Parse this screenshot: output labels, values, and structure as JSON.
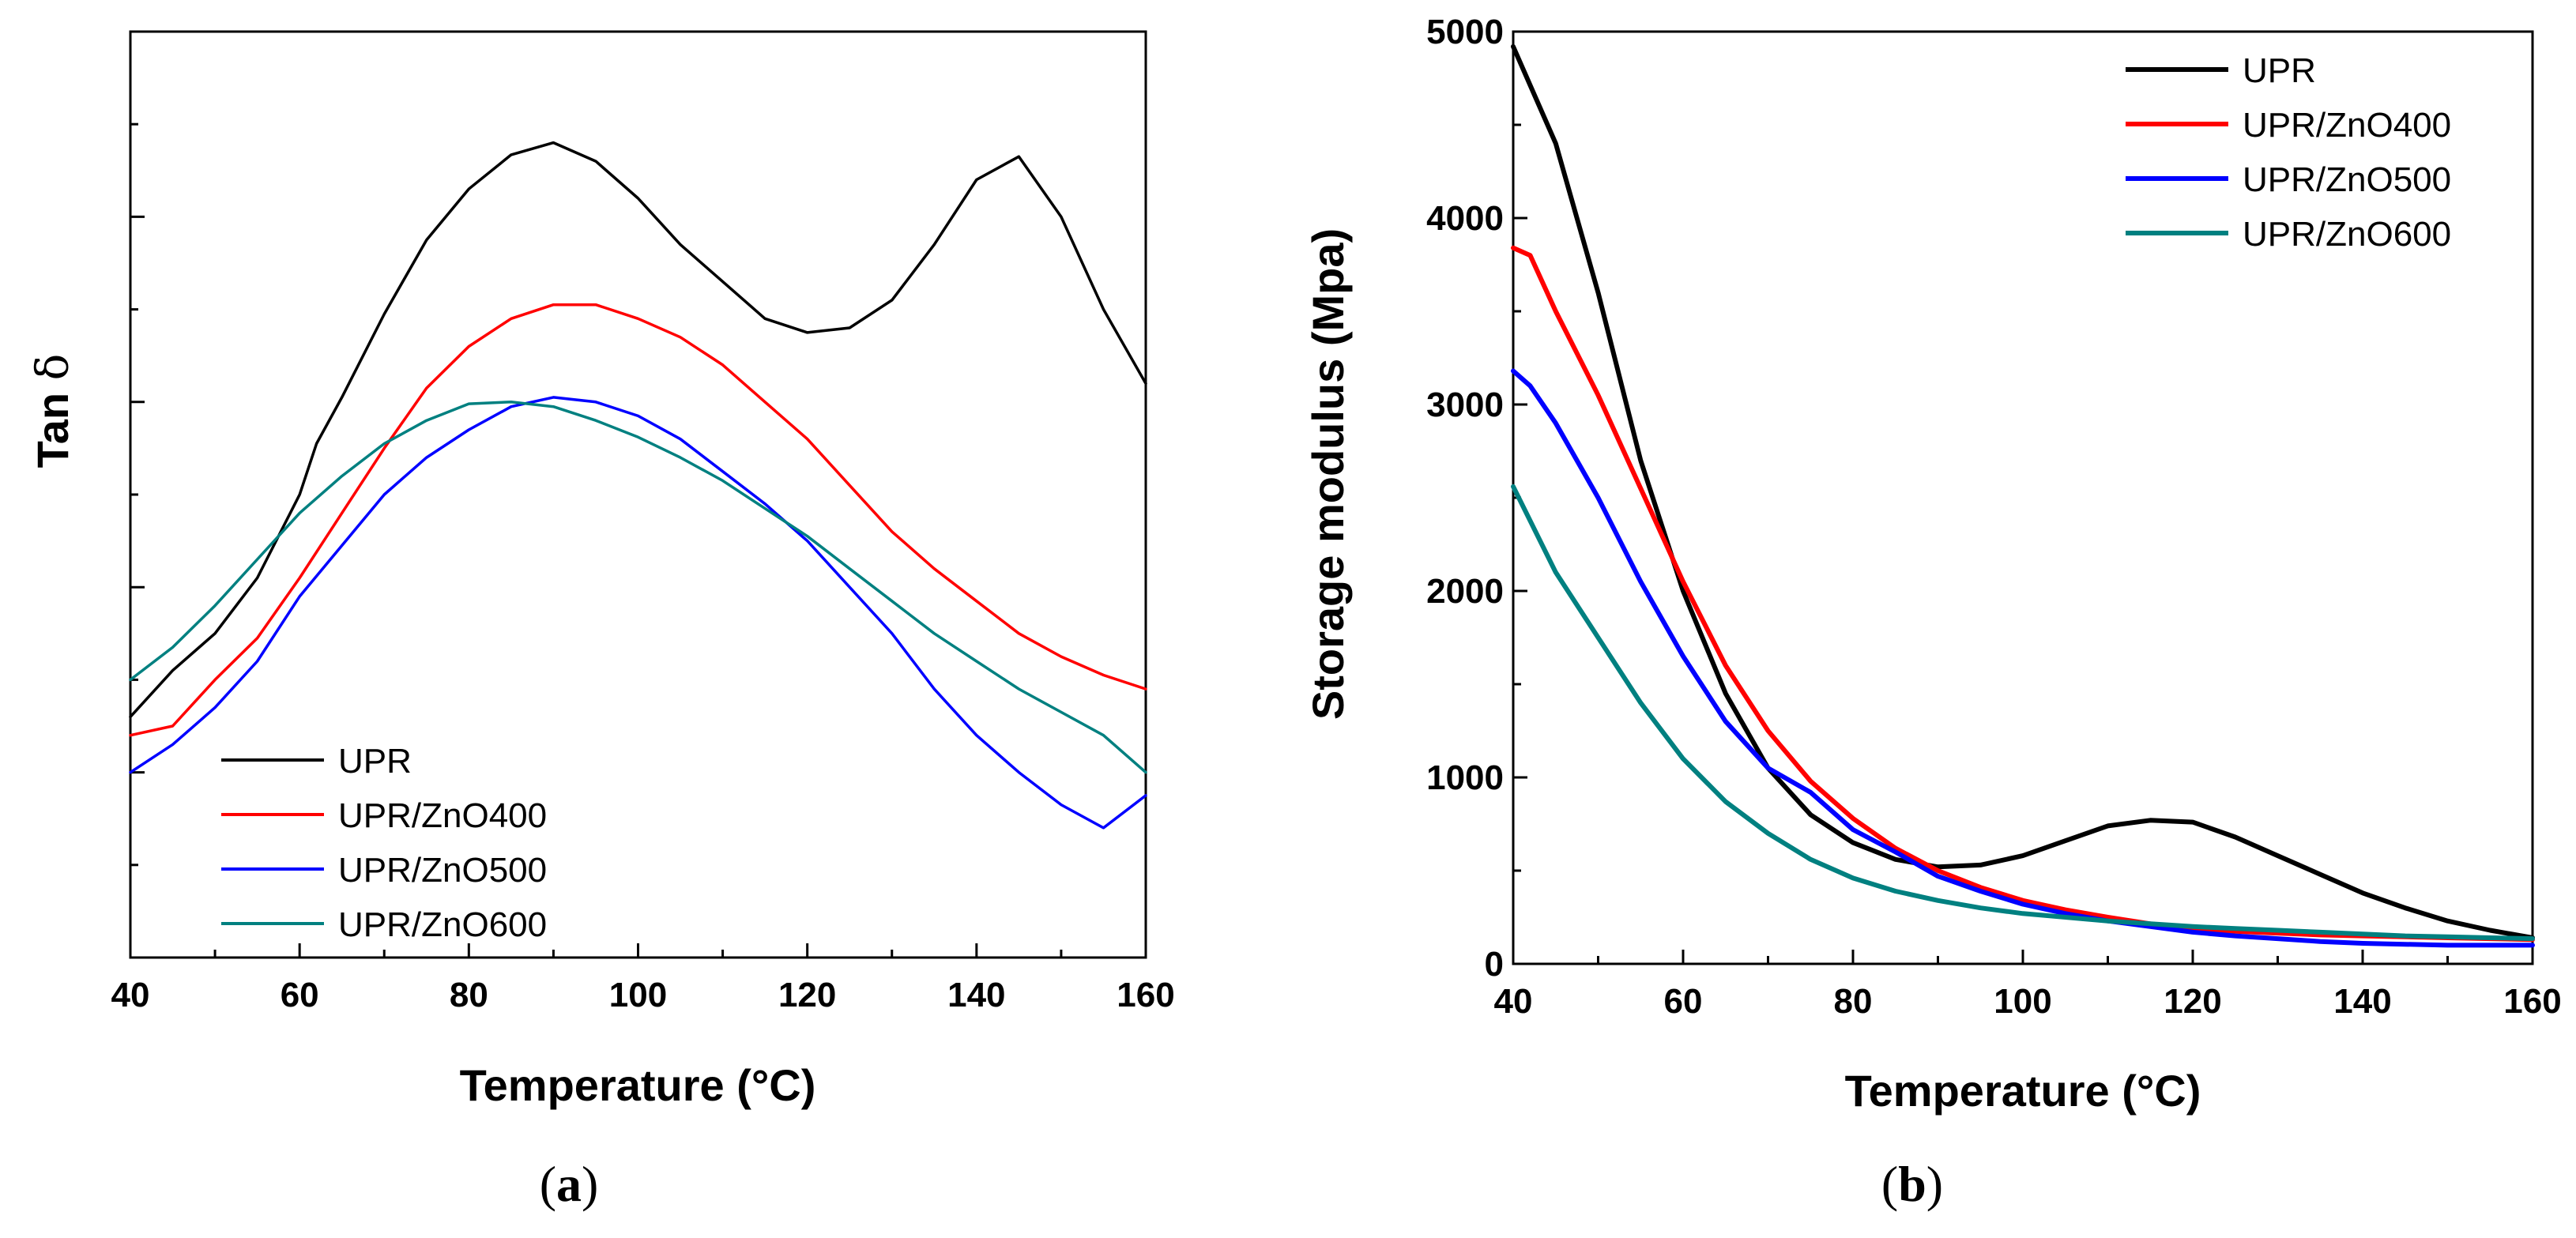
{
  "chart_data": [
    {
      "type": "line",
      "panel_label": "a",
      "title": "",
      "xlabel": "Temperature (°C)",
      "ylabel_main": "Tan ",
      "ylabel_symbol": "δ",
      "xlim": [
        40,
        160
      ],
      "ylim": [
        0,
        1
      ],
      "xticks": [
        40,
        60,
        80,
        100,
        120,
        140,
        160
      ],
      "yticks_unlabeled": true,
      "legend_position": "bottom-left",
      "series": [
        {
          "name": "UPR",
          "color": "#000000",
          "x": [
            40,
            45,
            50,
            55,
            60,
            62,
            65,
            70,
            75,
            80,
            85,
            90,
            95,
            100,
            105,
            110,
            115,
            120,
            125,
            130,
            135,
            140,
            145,
            150,
            155,
            160
          ],
          "y": [
            0.26,
            0.31,
            0.35,
            0.41,
            0.5,
            0.555,
            0.605,
            0.695,
            0.775,
            0.83,
            0.867,
            0.88,
            0.86,
            0.82,
            0.77,
            0.73,
            0.69,
            0.675,
            0.68,
            0.71,
            0.77,
            0.84,
            0.865,
            0.8,
            0.7,
            0.62
          ]
        },
        {
          "name": "UPR/ZnO400",
          "color": "#ff0000",
          "x": [
            40,
            45,
            50,
            55,
            60,
            65,
            70,
            75,
            80,
            85,
            90,
            95,
            100,
            105,
            110,
            115,
            120,
            125,
            130,
            135,
            140,
            145,
            150,
            155,
            160
          ],
          "y": [
            0.24,
            0.25,
            0.3,
            0.345,
            0.41,
            0.48,
            0.55,
            0.615,
            0.66,
            0.69,
            0.705,
            0.705,
            0.69,
            0.67,
            0.64,
            0.6,
            0.56,
            0.51,
            0.46,
            0.42,
            0.385,
            0.35,
            0.325,
            0.305,
            0.29
          ]
        },
        {
          "name": "UPR/ZnO500",
          "color": "#0000ff",
          "x": [
            40,
            45,
            50,
            55,
            60,
            65,
            70,
            75,
            80,
            85,
            90,
            95,
            100,
            105,
            110,
            115,
            120,
            125,
            130,
            135,
            140,
            145,
            150,
            155,
            160
          ],
          "y": [
            0.2,
            0.23,
            0.27,
            0.32,
            0.39,
            0.445,
            0.5,
            0.54,
            0.57,
            0.595,
            0.605,
            0.6,
            0.585,
            0.56,
            0.525,
            0.49,
            0.45,
            0.4,
            0.35,
            0.29,
            0.24,
            0.2,
            0.165,
            0.14,
            0.175
          ]
        },
        {
          "name": "UPR/ZnO600",
          "color": "#008080",
          "x": [
            40,
            45,
            50,
            55,
            60,
            65,
            70,
            75,
            80,
            85,
            90,
            95,
            100,
            105,
            110,
            115,
            120,
            125,
            130,
            135,
            140,
            145,
            150,
            155,
            160
          ],
          "y": [
            0.3,
            0.335,
            0.38,
            0.43,
            0.48,
            0.52,
            0.555,
            0.58,
            0.598,
            0.6,
            0.595,
            0.58,
            0.562,
            0.54,
            0.515,
            0.485,
            0.455,
            0.42,
            0.385,
            0.35,
            0.32,
            0.29,
            0.265,
            0.24,
            0.2
          ]
        }
      ],
      "legend_entries": [
        "UPR",
        "UPR/ZnO400",
        "UPR/ZnO500",
        "UPR/ZnO600"
      ]
    },
    {
      "type": "line",
      "panel_label": "b",
      "title": "",
      "xlabel": "Temperature (°C)",
      "ylabel": "Storage modulus (Mpa)",
      "xlim": [
        40,
        160
      ],
      "ylim": [
        0,
        5000
      ],
      "xticks": [
        40,
        60,
        80,
        100,
        120,
        140,
        160
      ],
      "yticks": [
        0,
        1000,
        2000,
        3000,
        4000,
        5000
      ],
      "legend_position": "top-right",
      "series": [
        {
          "name": "UPR",
          "color": "#000000",
          "x": [
            40,
            45,
            50,
            55,
            60,
            65,
            70,
            75,
            80,
            85,
            90,
            95,
            100,
            105,
            110,
            115,
            120,
            125,
            130,
            135,
            140,
            145,
            150,
            155,
            160
          ],
          "y": [
            4920,
            4400,
            3600,
            2700,
            2000,
            1450,
            1050,
            800,
            650,
            560,
            520,
            530,
            580,
            660,
            740,
            770,
            760,
            680,
            580,
            480,
            380,
            300,
            230,
            180,
            140
          ]
        },
        {
          "name": "UPR/ZnO400",
          "color": "#ff0000",
          "x": [
            40,
            42,
            45,
            50,
            55,
            60,
            65,
            70,
            75,
            80,
            85,
            90,
            95,
            100,
            105,
            110,
            115,
            120,
            125,
            130,
            135,
            140,
            145,
            150,
            155,
            160
          ],
          "y": [
            3840,
            3800,
            3500,
            3050,
            2550,
            2050,
            1600,
            1250,
            980,
            780,
            620,
            500,
            410,
            340,
            290,
            250,
            215,
            190,
            175,
            165,
            155,
            150,
            145,
            140,
            135,
            130
          ]
        },
        {
          "name": "UPR/ZnO500",
          "color": "#0000ff",
          "x": [
            40,
            42,
            45,
            50,
            55,
            60,
            65,
            70,
            75,
            80,
            85,
            90,
            95,
            100,
            105,
            110,
            115,
            120,
            125,
            130,
            135,
            140,
            145,
            150,
            155,
            160
          ],
          "y": [
            3180,
            3100,
            2900,
            2500,
            2050,
            1650,
            1300,
            1050,
            920,
            720,
            600,
            470,
            390,
            320,
            270,
            230,
            200,
            170,
            150,
            135,
            120,
            110,
            105,
            100,
            100,
            100
          ]
        },
        {
          "name": "UPR/ZnO600",
          "color": "#008080",
          "x": [
            40,
            45,
            50,
            55,
            60,
            65,
            70,
            75,
            80,
            85,
            90,
            95,
            100,
            105,
            110,
            115,
            120,
            125,
            130,
            135,
            140,
            145,
            150,
            155,
            160
          ],
          "y": [
            2560,
            2100,
            1750,
            1400,
            1100,
            870,
            700,
            560,
            460,
            390,
            340,
            300,
            270,
            250,
            230,
            215,
            200,
            190,
            180,
            170,
            160,
            150,
            145,
            140,
            135
          ]
        }
      ],
      "legend_entries": [
        "UPR",
        "UPR/ZnO400",
        "UPR/ZnO500",
        "UPR/ZnO600"
      ]
    }
  ],
  "captions": {
    "a": "a",
    "b": "b"
  }
}
